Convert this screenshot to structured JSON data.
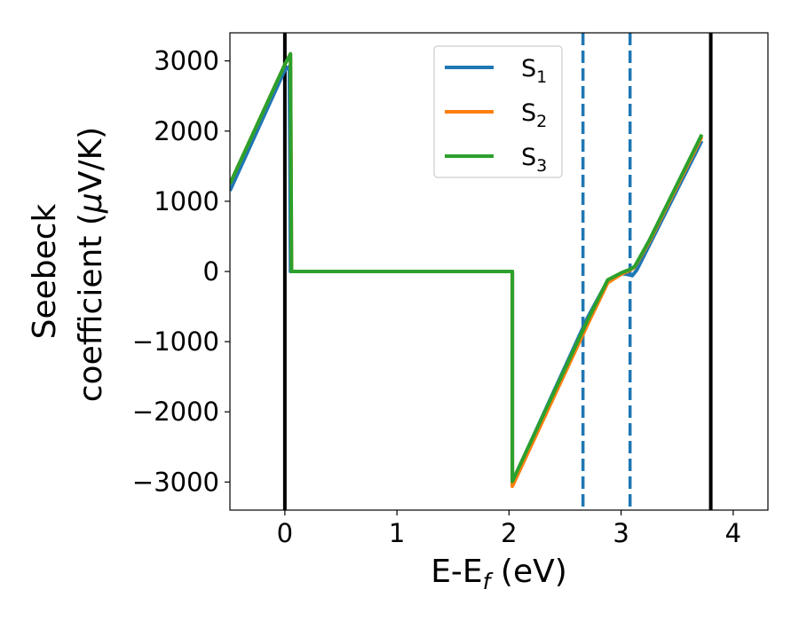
{
  "chart_data": {
    "type": "line",
    "xlabel": "E-E",
    "xlabel_sub": "f",
    "xlabel_unit": " (eV)",
    "ylabel_line1": "Seebeck",
    "ylabel_line2_pre": "coefficient  (",
    "ylabel_mu": "μ",
    "ylabel_line2_post": "V/K)",
    "xlim": [
      -0.49,
      4.31
    ],
    "ylim": [
      -3400,
      3400
    ],
    "x_ticks": [
      0,
      1,
      2,
      3,
      4
    ],
    "x_tick_labels": [
      "0",
      "1",
      "2",
      "3",
      "4"
    ],
    "y_ticks": [
      3000,
      2000,
      1000,
      0,
      -1000,
      -2000,
      -3000
    ],
    "y_tick_labels": [
      "3000",
      "2000",
      "1000",
      "0",
      "−1000",
      "−2000",
      "−3000"
    ],
    "grid": false,
    "legend_position": "top-center",
    "vlines": [
      {
        "x": 0.0,
        "style": "solid",
        "color": "#000000"
      },
      {
        "x": 3.8,
        "style": "solid",
        "color": "#000000"
      },
      {
        "x": 2.66,
        "style": "dashed",
        "color": "#1f77b4"
      },
      {
        "x": 3.08,
        "style": "dashed",
        "color": "#1f77b4"
      }
    ],
    "series": [
      {
        "name": "S",
        "sub": "1",
        "color": "#1f77b4",
        "points": [
          [
            -0.49,
            1150
          ],
          [
            0.0,
            2870
          ],
          [
            0.04,
            2920
          ],
          [
            0.05,
            0
          ],
          [
            2.03,
            0
          ],
          [
            2.03,
            -3000
          ],
          [
            2.7,
            -660
          ],
          [
            2.88,
            -130
          ],
          [
            3.0,
            -30
          ],
          [
            3.05,
            -40
          ],
          [
            3.1,
            -60
          ],
          [
            3.14,
            20
          ],
          [
            3.25,
            370
          ],
          [
            3.72,
            1860
          ]
        ]
      },
      {
        "name": "S",
        "sub": "2",
        "color": "#ff7f0e",
        "points": [
          [
            -0.49,
            1250
          ],
          [
            0.0,
            2950
          ],
          [
            0.05,
            3100
          ],
          [
            0.06,
            0
          ],
          [
            2.03,
            0
          ],
          [
            2.03,
            -3060
          ],
          [
            2.7,
            -760
          ],
          [
            2.88,
            -160
          ],
          [
            3.0,
            -40
          ],
          [
            3.08,
            20
          ],
          [
            3.12,
            60
          ],
          [
            3.25,
            420
          ],
          [
            3.72,
            1920
          ]
        ]
      },
      {
        "name": "S",
        "sub": "3",
        "color": "#2ca02c",
        "points": [
          [
            -0.49,
            1250
          ],
          [
            0.0,
            2950
          ],
          [
            0.05,
            3100
          ],
          [
            0.06,
            0
          ],
          [
            2.03,
            0
          ],
          [
            2.03,
            -2990
          ],
          [
            2.7,
            -700
          ],
          [
            2.88,
            -120
          ],
          [
            3.0,
            -20
          ],
          [
            3.08,
            30
          ],
          [
            3.12,
            70
          ],
          [
            3.25,
            440
          ],
          [
            3.72,
            1950
          ]
        ]
      }
    ]
  }
}
